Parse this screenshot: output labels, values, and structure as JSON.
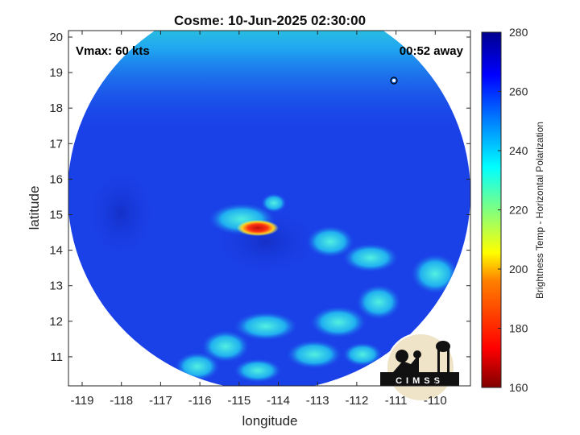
{
  "title": "Cosme: 10-Jun-2025 02:30:00",
  "vmax_label": "Vmax: 60 kts",
  "time_away_label": "00:52 away",
  "xlabel": "longitude",
  "ylabel": "latitude",
  "x_ticks": [
    "-119",
    "-118",
    "-117",
    "-116",
    "-115",
    "-114",
    "-113",
    "-112",
    "-111",
    "-110"
  ],
  "y_ticks": [
    "20",
    "19",
    "18",
    "17",
    "16",
    "15",
    "14",
    "13",
    "12",
    "11"
  ],
  "colorbar": {
    "label": "Brightness Temp - Horizontal Polarization",
    "ticks": [
      "280",
      "260",
      "240",
      "220",
      "200",
      "180",
      "160"
    ],
    "range": [
      160,
      280
    ],
    "colormap": "jet"
  },
  "logo_text": "CIMSS",
  "colors": {
    "background_field": "#1a3fe8",
    "eyewall_core": "#d82010",
    "eyewall_ring": "#ffe040",
    "rainbands": "#28c8f0",
    "north_edge": "#30d8d0"
  }
}
